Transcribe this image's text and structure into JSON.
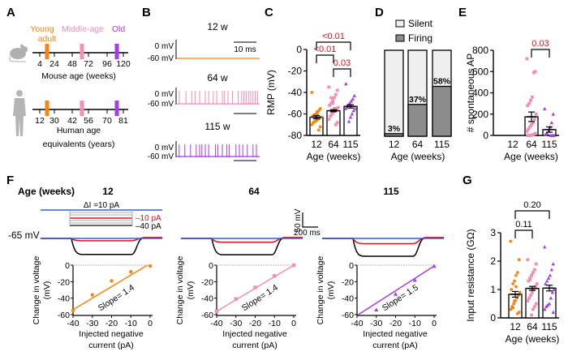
{
  "panel_labels": {
    "a": "A",
    "b": "B",
    "c": "C",
    "d": "D",
    "e": "E",
    "f": "F",
    "g": "G"
  },
  "colors": {
    "young": "#f7850f",
    "middle": "#f58db5",
    "old": "#a53ee6",
    "pvalue": "#e8101a",
    "stim_blue": "#2f62d6",
    "stim_red": "#e8101a",
    "gray": "#8c8c8c",
    "silent": "#efefef"
  },
  "panel_a": {
    "legend": {
      "young_1": "Young",
      "young_2": "adult",
      "middle": "Middle-age",
      "old": "Old"
    },
    "mouse": {
      "ticks": [
        "4",
        "24",
        "48",
        "72",
        "96",
        "120"
      ],
      "label": "Mouse age (weeks)",
      "icon": "mouse-icon"
    },
    "human": {
      "ticks": [
        "12",
        "30",
        "42",
        "56",
        "70",
        "81"
      ],
      "label_1": "Human age",
      "label_2": "equivalents (years)",
      "icon": "human-silhouette-icon"
    }
  },
  "panel_b": {
    "y_labels": {
      "zero": "0 mV",
      "rest": "-60 mV"
    },
    "scale_label": "10 ms",
    "traces": [
      {
        "label": "12  w",
        "spikes_ms": []
      },
      {
        "label": "64 w",
        "spikes_ms": [
          1,
          4,
          6.5,
          8,
          10,
          12.5,
          14,
          16,
          17.5,
          20,
          21,
          22.5,
          24.5,
          27,
          28.5,
          29.5,
          30.5,
          31.5,
          32.5,
          33.5,
          34.5,
          35.5
        ]
      },
      {
        "label": "115 w",
        "spikes_ms": [
          1,
          3.5,
          6,
          8.5,
          10,
          11,
          12.5,
          14,
          17,
          18,
          20,
          22,
          23,
          26,
          27.5,
          29,
          31,
          33.5,
          35
        ]
      }
    ]
  },
  "chart_data": [
    {
      "id": "C",
      "type": "bar",
      "ylabel": "RMP (mV)",
      "xlabel": "Age (weeks)",
      "categories": [
        "12",
        "64",
        "115"
      ],
      "ylim": [
        -80,
        0
      ],
      "yticks": [
        "0",
        "-20",
        "-40",
        "-60",
        "-80"
      ],
      "means": [
        -63,
        -57,
        -53
      ],
      "sem": [
        1.5,
        1,
        1.5
      ],
      "points": [
        [
          -40,
          -55,
          -57,
          -58,
          -60,
          -61,
          -62,
          -63,
          -64,
          -65,
          -66,
          -67,
          -68,
          -70,
          -72,
          -75,
          -60,
          -63
        ],
        [
          -35,
          -38,
          -42,
          -45,
          -48,
          -50,
          -52,
          -54,
          -55,
          -57,
          -58,
          -60,
          -62,
          -65,
          -68,
          -70,
          -55,
          -50,
          -45
        ],
        [
          -32,
          -43,
          -46,
          -48,
          -50,
          -52,
          -53,
          -55,
          -57,
          -60,
          -63,
          -67,
          -52,
          -55
        ]
      ],
      "comparisons": [
        {
          "pair": [
            0,
            2
          ],
          "p": "<0.01"
        },
        {
          "pair": [
            0,
            1
          ],
          "p": "<0.01"
        },
        {
          "pair": [
            1,
            2
          ],
          "p": "0.03"
        }
      ]
    },
    {
      "id": "D",
      "type": "stacked-bar",
      "xlabel": "Age (weeks)",
      "categories": [
        "12",
        "64",
        "115"
      ],
      "legend": [
        "Silent",
        "Firing"
      ],
      "firing_percent": [
        3,
        37,
        58
      ],
      "labels": [
        "3%",
        "37%",
        "58%"
      ]
    },
    {
      "id": "E",
      "type": "bar",
      "ylabel": "# spontaneous AP",
      "xlabel": "Age (weeks)",
      "categories": [
        "12",
        "64",
        "115"
      ],
      "ylim": [
        0,
        800
      ],
      "yticks": [
        "800",
        "600",
        "400",
        "200",
        "0"
      ],
      "means": [
        0,
        175,
        55
      ],
      "sem": [
        0,
        45,
        25
      ],
      "points": [
        [],
        [
          720,
          600,
          590,
          360,
          330,
          300,
          280,
          200,
          150,
          120,
          100,
          80,
          60,
          40,
          20,
          10,
          5,
          0,
          0,
          0
        ],
        [
          250,
          200,
          120,
          80,
          40,
          20,
          10,
          0,
          0,
          0
        ]
      ],
      "comparisons": [
        {
          "pair": [
            1,
            2
          ],
          "p": "0.03"
        }
      ]
    },
    {
      "id": "G",
      "type": "bar",
      "ylabel": "Input resistance (GΩ)",
      "xlabel": "Age (weeks)",
      "categories": [
        "12",
        "64",
        "115"
      ],
      "ylim": [
        0,
        3
      ],
      "yticks": [
        "3",
        "2",
        "1",
        "0"
      ],
      "means": [
        0.83,
        1.04,
        1.05
      ],
      "sem": [
        0.1,
        0.07,
        0.1
      ],
      "points": [
        [
          2.7,
          2.05,
          1.6,
          1.5,
          1.3,
          1.2,
          1.0,
          0.9,
          0.8,
          0.7,
          0.6,
          0.5,
          0.4,
          0.3,
          0.2,
          0.15,
          1.1,
          0.6,
          0.35
        ],
        [
          2.05,
          1.9,
          1.7,
          1.6,
          1.5,
          1.4,
          1.3,
          1.2,
          1.1,
          1.0,
          0.9,
          0.8,
          0.7,
          0.6,
          0.5,
          0.4,
          0.3,
          0.1,
          1.35
        ],
        [
          2.5,
          1.9,
          1.7,
          1.5,
          1.4,
          1.3,
          1.2,
          1.0,
          0.9,
          0.7,
          0.5,
          0.45,
          0.4,
          0.3,
          0.2
        ]
      ],
      "comparisons": [
        {
          "pair": [
            0,
            1
          ],
          "p": "0.11"
        },
        {
          "pair": [
            0,
            2
          ],
          "p": "0.20"
        }
      ]
    }
  ],
  "panel_f": {
    "header": "Age (weeks)",
    "stimulus": {
      "delta": "ΔI =10 pA",
      "red": "–10 pA",
      "black": "–40 pA",
      "holding": "-65 mV"
    },
    "scale": {
      "v": "50 mV",
      "t": "200 ms"
    },
    "iv": {
      "xlabel_1": "Injected negative",
      "xlabel_2": "current (pA)",
      "ylabel_1": "Change in voltage",
      "ylabel_2": "(mV)",
      "xticks": [
        "-40",
        "-30",
        "-20",
        "-10",
        "0"
      ],
      "yticks": [
        "0",
        "-20",
        "-40",
        "-60"
      ],
      "xlim": [
        -40,
        0
      ],
      "ylim": [
        -60,
        0
      ],
      "groups": [
        {
          "age": "12",
          "slope_label": "Slope= 1.4",
          "slope": 1.4,
          "intercept": 2,
          "x": [
            -40,
            -30,
            -20,
            -10,
            0
          ],
          "y": [
            -55,
            -36,
            -19,
            -8,
            -1
          ]
        },
        {
          "age": "64",
          "slope_label": "Slope= 1.4",
          "slope": 1.4,
          "intercept": 0,
          "x": [
            -40,
            -30,
            -20,
            -10,
            0
          ],
          "y": [
            -56,
            -41,
            -27,
            -13,
            0
          ]
        },
        {
          "age": "115",
          "slope_label": "Slope= 1.5",
          "slope": 1.5,
          "intercept": -1,
          "x": [
            -30,
            -20,
            -10,
            0
          ],
          "y": [
            -54,
            -35,
            -18,
            -1
          ]
        }
      ]
    }
  }
}
